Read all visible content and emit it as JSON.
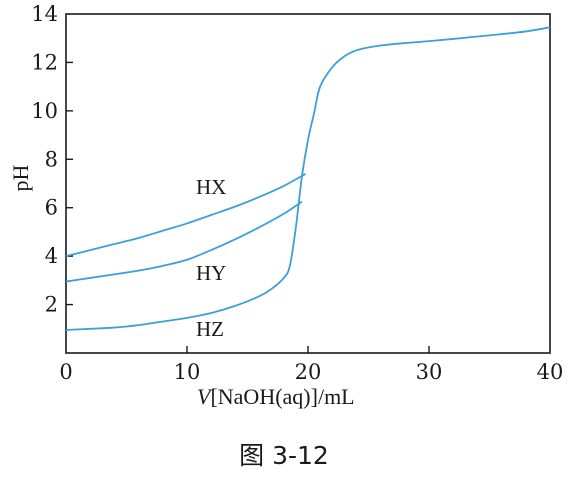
{
  "chart_data": {
    "type": "line",
    "xlabel_italic": "V",
    "xlabel_rest": "[NaOH(aq)]/mL",
    "ylabel": "pH",
    "xlim": [
      0,
      40
    ],
    "ylim": [
      0,
      14
    ],
    "x_ticks": [
      0,
      10,
      20,
      30,
      40
    ],
    "y_ticks": [
      2,
      4,
      6,
      8,
      10,
      12,
      14
    ],
    "x_tick_labels": [
      "0",
      "10",
      "20",
      "30",
      "40"
    ],
    "y_tick_labels": [
      "2",
      "4",
      "6",
      "8",
      "10",
      "12",
      "14"
    ],
    "grid": false,
    "line_color": "#3aa0d8",
    "series": [
      {
        "name": "HX",
        "x": [
          0,
          2,
          4,
          6,
          8,
          10,
          12,
          14,
          16,
          18,
          19.8
        ],
        "y": [
          4.0,
          4.25,
          4.5,
          4.75,
          5.05,
          5.35,
          5.7,
          6.05,
          6.45,
          6.9,
          7.4
        ]
      },
      {
        "name": "HY",
        "x": [
          0,
          2,
          4,
          6,
          8,
          10,
          12,
          14,
          16,
          18,
          19.5
        ],
        "y": [
          2.95,
          3.1,
          3.25,
          3.4,
          3.6,
          3.85,
          4.25,
          4.7,
          5.2,
          5.75,
          6.25
        ]
      },
      {
        "name": "HZ",
        "x": [
          0,
          2,
          4,
          6,
          8,
          10,
          12,
          14,
          16,
          17,
          18,
          18.5,
          19,
          19.5,
          20,
          20.5,
          21,
          22,
          23,
          24,
          25,
          26,
          28,
          30,
          32,
          34,
          36,
          38,
          40
        ],
        "y": [
          0.95,
          1.0,
          1.05,
          1.15,
          1.3,
          1.45,
          1.65,
          1.95,
          2.35,
          2.65,
          3.1,
          3.6,
          5.2,
          7.3,
          8.8,
          9.9,
          11.0,
          11.8,
          12.25,
          12.5,
          12.62,
          12.7,
          12.8,
          12.88,
          12.97,
          13.07,
          13.17,
          13.28,
          13.45
        ]
      }
    ]
  },
  "caption": "图 3-12"
}
